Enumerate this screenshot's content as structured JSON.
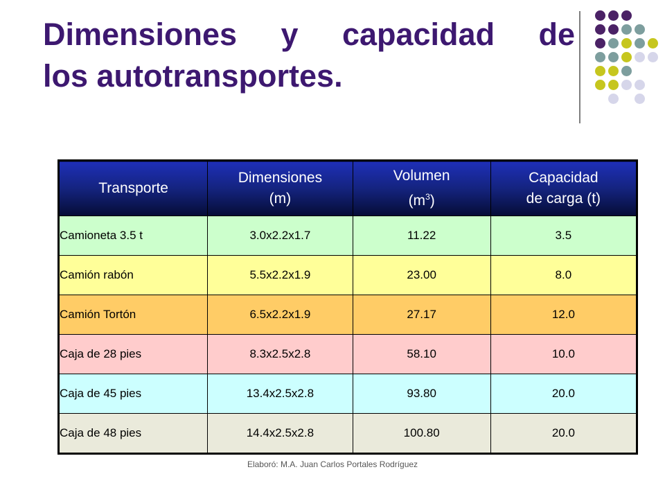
{
  "slide": {
    "title_line1": "Dimensiones y capacidad de",
    "title_line2": "los autotransportes.",
    "footer": "Elaboró: M.A. Juan Carlos Portales Rodríguez"
  },
  "table": {
    "headers": [
      {
        "l1": "Transporte",
        "l2": ""
      },
      {
        "l1": "Dimensiones",
        "l2": "(m)"
      },
      {
        "l1": "Volumen",
        "l2_base": "(m",
        "l2_sup": "3",
        "l2_end": ")"
      },
      {
        "l1": "Capacidad",
        "l2": "de carga (t)"
      }
    ],
    "rows": [
      {
        "transporte": "Camioneta 3.5 t",
        "dimensiones": "3.0x2.2x1.7",
        "volumen": "11.22",
        "capacidad": "3.5",
        "color": "#ccffcc"
      },
      {
        "transporte": "Camión rabón",
        "dimensiones": "5.5x2.2x1.9",
        "volumen": "23.00",
        "capacidad": "8.0",
        "color": "#ffff99"
      },
      {
        "transporte": "Camión Tortón",
        "dimensiones": "6.5x2.2x1.9",
        "volumen": "27.17",
        "capacidad": "12.0",
        "color": "#ffcc66"
      },
      {
        "transporte": "Caja de 28 pies",
        "dimensiones": "8.3x2.5x2.8",
        "volumen": "58.10",
        "capacidad": "10.0",
        "color": "#ffcccc"
      },
      {
        "transporte": "Caja de 45 pies",
        "dimensiones": "13.4x2.5x2.8",
        "volumen": "93.80",
        "capacidad": "20.0",
        "color": "#ccffff"
      },
      {
        "transporte": "Caja de 48 pies",
        "dimensiones": "14.4x2.5x2.8",
        "volumen": "100.80",
        "capacidad": "20.0",
        "color": "#eaeadb"
      }
    ]
  },
  "theme": {
    "title_color": "#3d1870",
    "dot_colors": {
      "purple": "#4b2266",
      "teal": "#7d9e9e",
      "olive": "#c6c61e",
      "lavender": "#d6d6ea"
    }
  }
}
